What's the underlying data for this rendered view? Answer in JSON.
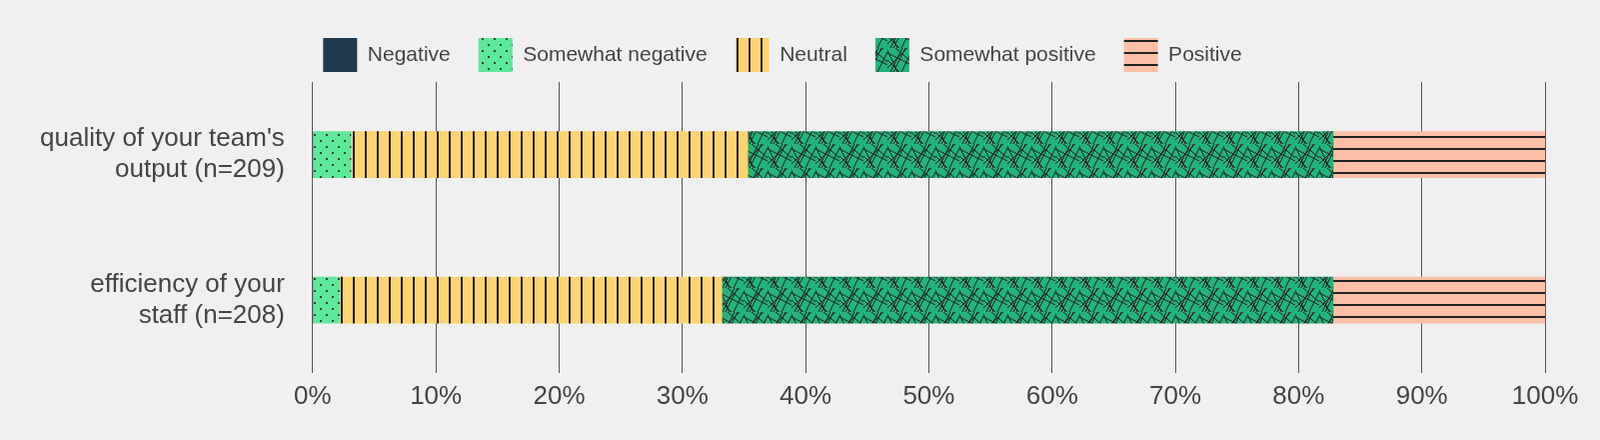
{
  "chart_data": {
    "type": "bar",
    "orientation": "horizontal",
    "stacked": true,
    "grid": true,
    "legend": "top",
    "categories": [
      [
        "quality of your team's",
        "output (n=209)"
      ],
      [
        "efficiency of your",
        "staff (n=208)"
      ]
    ],
    "series": [
      {
        "name": "Negative",
        "color": "#1f3a4f",
        "values": [
          0,
          0
        ]
      },
      {
        "name": "Somewhat negative",
        "color": "#5ee89a",
        "values": [
          3.1,
          2.2
        ]
      },
      {
        "name": "Neutral",
        "color": "#fdd56f",
        "values": [
          32.2,
          31.0
        ]
      },
      {
        "name": "Somewhat positive",
        "color": "#24b37a",
        "values": [
          47.5,
          49.6
        ]
      },
      {
        "name": "Positive",
        "color": "#fbbfa8",
        "values": [
          17.2,
          17.2
        ]
      }
    ],
    "xlim": [
      0,
      100
    ],
    "xticks": [
      {
        "value": 0,
        "label": "0%"
      },
      {
        "value": 10,
        "label": "10%"
      },
      {
        "value": 20,
        "label": "20%"
      },
      {
        "value": 30,
        "label": "30%"
      },
      {
        "value": 40,
        "label": "40%"
      },
      {
        "value": 50,
        "label": "50%"
      },
      {
        "value": 60,
        "label": "60%"
      },
      {
        "value": 70,
        "label": "70%"
      },
      {
        "value": 80,
        "label": "80%"
      },
      {
        "value": 90,
        "label": "90%"
      },
      {
        "value": 100,
        "label": "100%"
      }
    ]
  }
}
